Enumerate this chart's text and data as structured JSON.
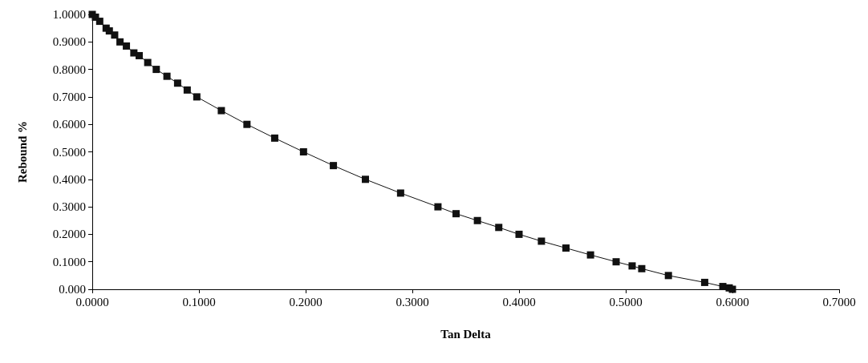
{
  "chart_data": {
    "type": "line",
    "xlabel": "Tan Delta",
    "ylabel": "Rebound %",
    "x": [
      0,
      0.003,
      0.007,
      0.013,
      0.016,
      0.021,
      0.026,
      0.032,
      0.039,
      0.044,
      0.052,
      0.06,
      0.07,
      0.08,
      0.089,
      0.098,
      0.121,
      0.145,
      0.171,
      0.198,
      0.226,
      0.256,
      0.289,
      0.324,
      0.341,
      0.361,
      0.381,
      0.4,
      0.421,
      0.444,
      0.467,
      0.491,
      0.506,
      0.515,
      0.54,
      0.574,
      0.591,
      0.597,
      0.6
    ],
    "series": [
      {
        "color": "#111111",
        "values": [
          1.0,
          0.99,
          0.975,
          0.95,
          0.94,
          0.925,
          0.9,
          0.885,
          0.86,
          0.85,
          0.825,
          0.8,
          0.775,
          0.75,
          0.725,
          0.7,
          0.65,
          0.6,
          0.55,
          0.5,
          0.45,
          0.4,
          0.35,
          0.3,
          0.275,
          0.25,
          0.225,
          0.2,
          0.175,
          0.15,
          0.125,
          0.1,
          0.085,
          0.075,
          0.05,
          0.025,
          0.01,
          0.005,
          0
        ]
      }
    ],
    "xlim": [
      0,
      0.7
    ],
    "xticks": [
      {
        "value": 0,
        "label": "0.0000"
      },
      {
        "value": 0.1,
        "label": "0.1000"
      },
      {
        "value": 0.2,
        "label": "0.2000"
      },
      {
        "value": 0.3,
        "label": "0.3000"
      },
      {
        "value": 0.4,
        "label": "0.4000"
      },
      {
        "value": 0.5,
        "label": "0.5000"
      },
      {
        "value": 0.6,
        "label": "0.6000"
      },
      {
        "value": 0.7,
        "label": "0.7000"
      }
    ],
    "ylim": [
      0,
      1
    ],
    "yticks": [
      {
        "value": 0,
        "label": "0.000"
      },
      {
        "value": 0.1,
        "label": "0.1000"
      },
      {
        "value": 0.2,
        "label": "0.2000"
      },
      {
        "value": 0.3,
        "label": "0.3000"
      },
      {
        "value": 0.4,
        "label": "0.4000"
      },
      {
        "value": 0.5,
        "label": "0.5000"
      },
      {
        "value": 0.6,
        "label": "0.6000"
      },
      {
        "value": 0.7,
        "label": "0.7000"
      },
      {
        "value": 0.8,
        "label": "0.8000"
      },
      {
        "value": 0.9,
        "label": "0.9000"
      },
      {
        "value": 1,
        "label": "1.0000"
      }
    ],
    "grid": false,
    "legend": false,
    "marker": "square",
    "line_style": "solid"
  }
}
